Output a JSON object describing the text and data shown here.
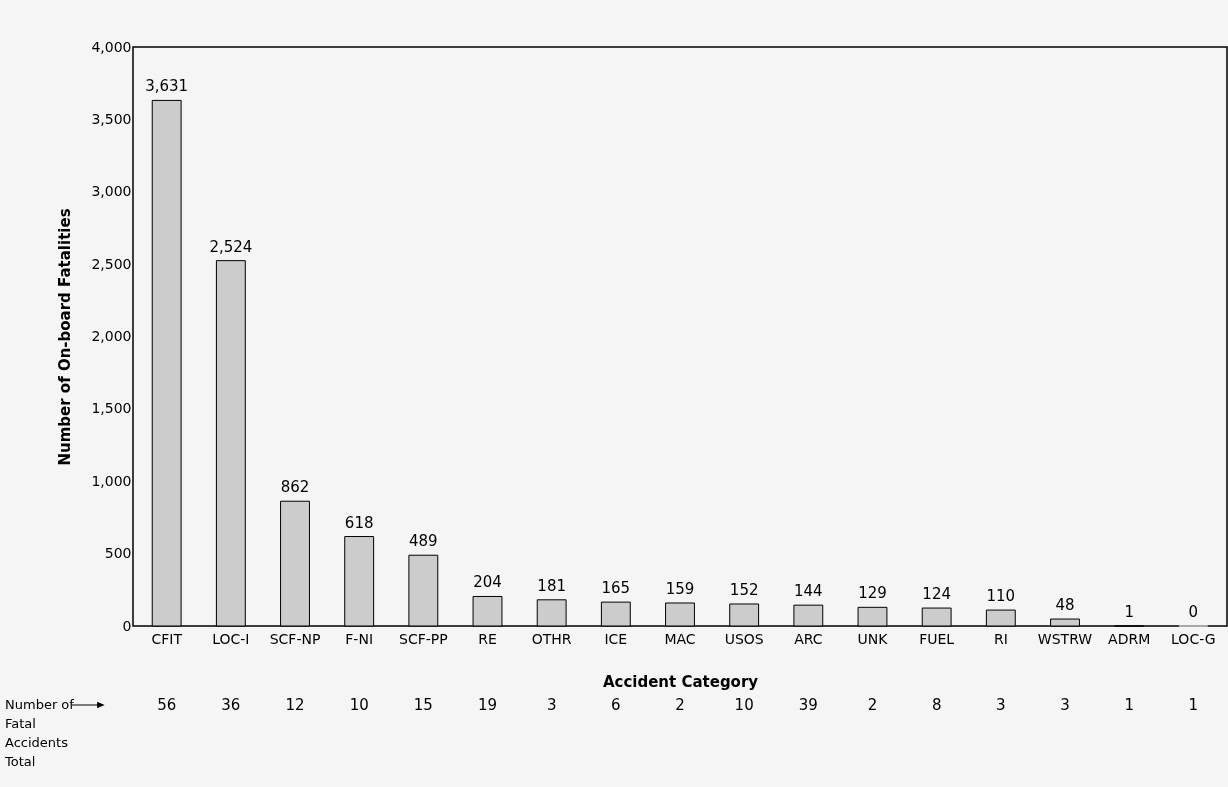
{
  "chart_data": {
    "type": "bar",
    "xlabel": "Accident Category",
    "ylabel": "Number of On-board Fatalities",
    "categories": [
      "CFIT",
      "LOC-I",
      "SCF-NP",
      "F-NI",
      "SCF-PP",
      "RE",
      "OTHR",
      "ICE",
      "MAC",
      "USOS",
      "ARC",
      "UNK",
      "FUEL",
      "RI",
      "WSTRW",
      "ADRM",
      "LOC-G"
    ],
    "values": [
      3631,
      2524,
      862,
      618,
      489,
      204,
      181,
      165,
      159,
      152,
      144,
      129,
      124,
      110,
      48,
      1,
      0
    ],
    "color": "#cccccc",
    "ylim": [
      0,
      4000
    ],
    "yticks": [
      0,
      500,
      {
        "value": 1000,
        "label": "1,000"
      },
      {
        "value": 1500,
        "label": "1,500"
      },
      {
        "value": 2000,
        "label": "2,000"
      },
      {
        "value": 2500,
        "label": "2,500"
      },
      {
        "value": 3000,
        "label": "3,000"
      },
      {
        "value": 3500,
        "label": "3,500"
      },
      {
        "value": 4000,
        "label": "4,000"
      }
    ],
    "grid": false,
    "value_labels": [
      "3,631",
      "2,524",
      "862",
      "618",
      "489",
      "204",
      "181",
      "165",
      "159",
      "152",
      "144",
      "129",
      "124",
      "110",
      "48",
      "1",
      "0"
    ],
    "annotations": [
      "Number of\nFatal\nAccidents\nTotal",
      "56",
      "36",
      "12",
      "10",
      "15",
      "19",
      "3",
      "6",
      "2",
      "10",
      "39",
      "2",
      "8",
      "3",
      "3",
      "1",
      "1"
    ]
  }
}
